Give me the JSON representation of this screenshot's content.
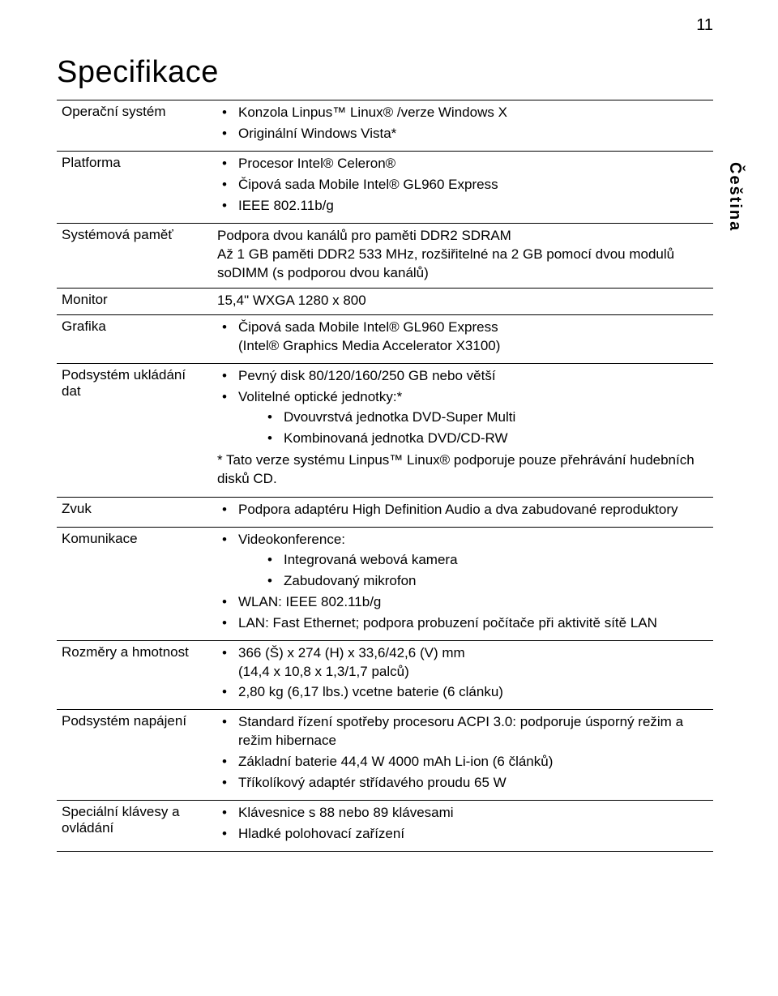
{
  "page_number": "11",
  "title": "Specifikace",
  "side_tab": "Čeština",
  "rows": [
    {
      "label": "Operační systém",
      "bullets_l1": [
        "Konzola Linpus™ Linux® /verze Windows X",
        "Originální Windows Vista*"
      ]
    },
    {
      "label": "Platforma",
      "bullets_l1": [
        "Procesor Intel® Celeron®",
        "Čipová sada Mobile Intel® GL960 Express",
        "IEEE 802.11b/g"
      ]
    },
    {
      "label": "Systémová paměť",
      "plain": "Podpora dvou kanálů pro paměti DDR2 SDRAM\nAž 1 GB paměti DDR2 533 MHz, rozšiřitelné na 2 GB pomocí dvou modulů soDIMM (s podporou dvou kanálů)"
    },
    {
      "label": "Monitor",
      "plain": "15,4\" WXGA 1280 x 800"
    },
    {
      "label": "Grafika",
      "bullets_l1": [
        "Čipová sada Mobile Intel® GL960 Express\n(Intel® Graphics Media Accelerator X3100)"
      ]
    },
    {
      "label": "Podsystém ukládání dat",
      "bullets_l1": [
        "Pevný disk 80/120/160/250 GB nebo větší",
        "Volitelné optické jednotky:*"
      ],
      "bullets_l2_after": 1,
      "bullets_l2": [
        "Dvouvrstvá jednotka DVD-Super Multi",
        "Kombinovaná jednotka DVD/CD-RW"
      ],
      "note": "* Tato verze systému Linpus™ Linux® podporuje pouze přehrávání hudebních disků CD."
    },
    {
      "label": "Zvuk",
      "bullets_l1": [
        "Podpora adaptéru High Definition Audio a dva zabudované reproduktory"
      ]
    },
    {
      "label": "Komunikace",
      "bullets_l1": [
        "Videokonference:"
      ],
      "bullets_l2_after": 0,
      "bullets_l2": [
        "Integrovaná webová kamera",
        "Zabudovaný mikrofon"
      ],
      "bullets_l1_cont": [
        "WLAN: IEEE 802.11b/g",
        "LAN: Fast Ethernet; podpora probuzení počítače při aktivitě sítě LAN"
      ]
    },
    {
      "label": "Rozměry a hmotnost",
      "bullets_l1": [
        "366 (Š) x 274 (H) x 33,6/42,6 (V) mm\n(14,4 x 10,8 x 1,3/1,7 palců)",
        "2,80 kg  (6,17 lbs.) vcetne baterie (6 clánku)"
      ]
    },
    {
      "label": "Podsystém napájení",
      "bullets_l1": [
        "Standard řízení spotřeby procesoru ACPI 3.0: podporuje úsporný režim a režim hibernace",
        "Základní baterie 44,4 W 4000 mAh Li-ion (6 článků)",
        "Tříkolíkový adaptér střídavého proudu 65 W"
      ]
    },
    {
      "label": "Speciální klávesy a ovládání",
      "bullets_l1": [
        "Klávesnice s 88 nebo 89 klávesami",
        "Hladké polohovací zařízení"
      ]
    }
  ]
}
